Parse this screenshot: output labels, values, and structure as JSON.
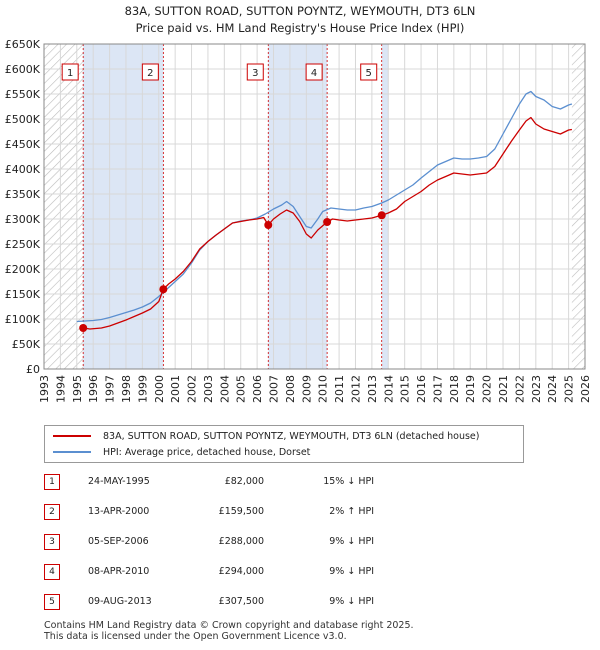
{
  "chart_data": {
    "type": "line",
    "title": "83A, SUTTON ROAD, SUTTON POYNTZ, WEYMOUTH, DT3 6LN",
    "subtitle": "Price paid vs. HM Land Registry's House Price Index (HPI)",
    "xlabel": "",
    "ylabel": "",
    "xlim": [
      1993,
      2026
    ],
    "ylim": [
      0,
      650000
    ],
    "y_ticks": [
      {
        "value": 0,
        "label": "£0"
      },
      {
        "value": 50000,
        "label": "£50K"
      },
      {
        "value": 100000,
        "label": "£100K"
      },
      {
        "value": 150000,
        "label": "£150K"
      },
      {
        "value": 200000,
        "label": "£200K"
      },
      {
        "value": 250000,
        "label": "£250K"
      },
      {
        "value": 300000,
        "label": "£300K"
      },
      {
        "value": 350000,
        "label": "£350K"
      },
      {
        "value": 400000,
        "label": "£400K"
      },
      {
        "value": 450000,
        "label": "£450K"
      },
      {
        "value": 500000,
        "label": "£500K"
      },
      {
        "value": 550000,
        "label": "£550K"
      },
      {
        "value": 600000,
        "label": "£600K"
      },
      {
        "value": 650000,
        "label": "£650K"
      }
    ],
    "x_ticks": [
      "1993",
      "1994",
      "1995",
      "1996",
      "1997",
      "1998",
      "1999",
      "2000",
      "2001",
      "2002",
      "2003",
      "2004",
      "2005",
      "2006",
      "2007",
      "2008",
      "2009",
      "2010",
      "2011",
      "2012",
      "2013",
      "2014",
      "2015",
      "2016",
      "2017",
      "2018",
      "2019",
      "2020",
      "2021",
      "2022",
      "2023",
      "2024",
      "2025",
      "2026"
    ],
    "grid": true,
    "hatched_ranges": [
      [
        1993,
        1995.4
      ],
      [
        2025.2,
        2026
      ]
    ],
    "shaded_ranges": [
      [
        1995.39,
        2000.28
      ],
      [
        2006.68,
        2010.27
      ],
      [
        2013.6,
        2014.0
      ]
    ],
    "series": [
      {
        "name": "83A, SUTTON ROAD, SUTTON POYNTZ, WEYMOUTH, DT3 6LN (detached house)",
        "color": "#cc0000",
        "points": [
          [
            1995.39,
            82000
          ],
          [
            1995.8,
            80000
          ],
          [
            1996.5,
            82000
          ],
          [
            1997.0,
            86000
          ],
          [
            1997.5,
            92000
          ],
          [
            1998.0,
            98000
          ],
          [
            1998.5,
            105000
          ],
          [
            1999.0,
            112000
          ],
          [
            1999.5,
            120000
          ],
          [
            2000.0,
            135000
          ],
          [
            2000.28,
            159500
          ],
          [
            2000.6,
            170000
          ],
          [
            2001.0,
            180000
          ],
          [
            2001.5,
            195000
          ],
          [
            2002.0,
            215000
          ],
          [
            2002.5,
            240000
          ],
          [
            2003.0,
            255000
          ],
          [
            2003.5,
            268000
          ],
          [
            2004.0,
            280000
          ],
          [
            2004.5,
            292000
          ],
          [
            2005.0,
            295000
          ],
          [
            2005.5,
            298000
          ],
          [
            2006.0,
            300000
          ],
          [
            2006.4,
            303000
          ],
          [
            2006.68,
            288000
          ],
          [
            2007.0,
            300000
          ],
          [
            2007.4,
            310000
          ],
          [
            2007.8,
            318000
          ],
          [
            2008.2,
            312000
          ],
          [
            2008.6,
            295000
          ],
          [
            2009.0,
            270000
          ],
          [
            2009.3,
            262000
          ],
          [
            2009.7,
            278000
          ],
          [
            2010.27,
            294000
          ],
          [
            2010.6,
            300000
          ],
          [
            2011.0,
            298000
          ],
          [
            2011.5,
            296000
          ],
          [
            2012.0,
            298000
          ],
          [
            2012.5,
            300000
          ],
          [
            2013.0,
            302000
          ],
          [
            2013.6,
            307500
          ],
          [
            2014.0,
            312000
          ],
          [
            2014.5,
            320000
          ],
          [
            2015.0,
            335000
          ],
          [
            2015.5,
            345000
          ],
          [
            2016.0,
            355000
          ],
          [
            2016.5,
            368000
          ],
          [
            2017.0,
            378000
          ],
          [
            2017.5,
            385000
          ],
          [
            2018.0,
            392000
          ],
          [
            2018.5,
            390000
          ],
          [
            2019.0,
            388000
          ],
          [
            2019.5,
            390000
          ],
          [
            2020.0,
            392000
          ],
          [
            2020.5,
            405000
          ],
          [
            2021.0,
            430000
          ],
          [
            2021.5,
            455000
          ],
          [
            2022.0,
            478000
          ],
          [
            2022.4,
            496000
          ],
          [
            2022.7,
            503000
          ],
          [
            2023.0,
            490000
          ],
          [
            2023.5,
            480000
          ],
          [
            2024.0,
            475000
          ],
          [
            2024.5,
            470000
          ],
          [
            2025.0,
            478000
          ],
          [
            2025.2,
            479000
          ]
        ]
      },
      {
        "name": "HPI: Average price, detached house, Dorset",
        "color": "#5b8fd0",
        "points": [
          [
            1995.0,
            95000
          ],
          [
            1995.5,
            96000
          ],
          [
            1996.0,
            97000
          ],
          [
            1996.5,
            99000
          ],
          [
            1997.0,
            103000
          ],
          [
            1997.5,
            108000
          ],
          [
            1998.0,
            113000
          ],
          [
            1998.5,
            118000
          ],
          [
            1999.0,
            124000
          ],
          [
            1999.5,
            132000
          ],
          [
            2000.0,
            145000
          ],
          [
            2000.5,
            160000
          ],
          [
            2001.0,
            175000
          ],
          [
            2001.5,
            190000
          ],
          [
            2002.0,
            212000
          ],
          [
            2002.5,
            238000
          ],
          [
            2003.0,
            255000
          ],
          [
            2003.5,
            268000
          ],
          [
            2004.0,
            280000
          ],
          [
            2004.5,
            292000
          ],
          [
            2005.0,
            296000
          ],
          [
            2005.5,
            298000
          ],
          [
            2006.0,
            302000
          ],
          [
            2006.5,
            310000
          ],
          [
            2007.0,
            320000
          ],
          [
            2007.5,
            328000
          ],
          [
            2007.8,
            335000
          ],
          [
            2008.2,
            325000
          ],
          [
            2008.6,
            305000
          ],
          [
            2009.0,
            285000
          ],
          [
            2009.3,
            282000
          ],
          [
            2009.7,
            300000
          ],
          [
            2010.0,
            315000
          ],
          [
            2010.5,
            322000
          ],
          [
            2011.0,
            320000
          ],
          [
            2011.5,
            318000
          ],
          [
            2012.0,
            318000
          ],
          [
            2012.5,
            322000
          ],
          [
            2013.0,
            325000
          ],
          [
            2013.6,
            332000
          ],
          [
            2014.0,
            338000
          ],
          [
            2014.5,
            348000
          ],
          [
            2015.0,
            358000
          ],
          [
            2015.5,
            368000
          ],
          [
            2016.0,
            382000
          ],
          [
            2016.5,
            395000
          ],
          [
            2017.0,
            408000
          ],
          [
            2017.5,
            415000
          ],
          [
            2018.0,
            422000
          ],
          [
            2018.5,
            420000
          ],
          [
            2019.0,
            420000
          ],
          [
            2019.5,
            422000
          ],
          [
            2020.0,
            425000
          ],
          [
            2020.5,
            440000
          ],
          [
            2021.0,
            470000
          ],
          [
            2021.5,
            500000
          ],
          [
            2022.0,
            530000
          ],
          [
            2022.4,
            550000
          ],
          [
            2022.7,
            555000
          ],
          [
            2023.0,
            545000
          ],
          [
            2023.5,
            538000
          ],
          [
            2024.0,
            525000
          ],
          [
            2024.5,
            520000
          ],
          [
            2025.0,
            528000
          ],
          [
            2025.2,
            530000
          ]
        ]
      }
    ],
    "sales": [
      {
        "num": "1",
        "year": 1995.39,
        "price": 82000
      },
      {
        "num": "2",
        "year": 2000.28,
        "price": 159500
      },
      {
        "num": "3",
        "year": 2006.68,
        "price": 288000
      },
      {
        "num": "4",
        "year": 2010.27,
        "price": 294000
      },
      {
        "num": "5",
        "year": 2013.6,
        "price": 307500
      }
    ]
  },
  "legend": {
    "property_label": "83A, SUTTON ROAD, SUTTON POYNTZ, WEYMOUTH, DT3 6LN (detached house)",
    "hpi_label": "HPI: Average price, detached house, Dorset"
  },
  "sales_table": [
    {
      "num": "1",
      "date": "24-MAY-1995",
      "price": "£82,000",
      "hpi": "15% ↓ HPI"
    },
    {
      "num": "2",
      "date": "13-APR-2000",
      "price": "£159,500",
      "hpi": "2% ↑ HPI"
    },
    {
      "num": "3",
      "date": "05-SEP-2006",
      "price": "£288,000",
      "hpi": "9% ↓ HPI"
    },
    {
      "num": "4",
      "date": "08-APR-2010",
      "price": "£294,000",
      "hpi": "9% ↓ HPI"
    },
    {
      "num": "5",
      "date": "09-AUG-2013",
      "price": "£307,500",
      "hpi": "9% ↓ HPI"
    }
  ],
  "footer": {
    "line1": "Contains HM Land Registry data © Crown copyright and database right 2025.",
    "line2": "This data is licensed under the Open Government Licence v3.0."
  },
  "colors": {
    "property": "#cc0000",
    "hpi": "#5b8fd0",
    "shade": "#dce6f5",
    "marker_border": "#cc0000"
  }
}
